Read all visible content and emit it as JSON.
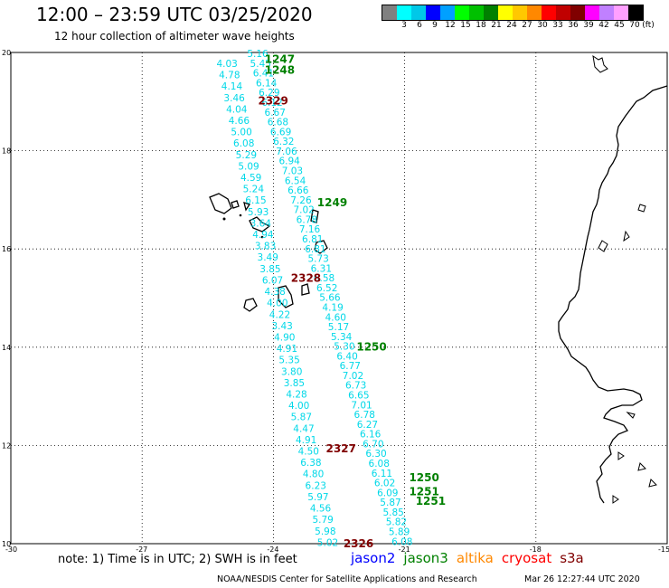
{
  "title": "12:00 – 23:59 UTC 03/25/2020",
  "subtitle": "12 hour collection of altimeter wave heights",
  "legend": {
    "colors": [
      "#808080",
      "#00ffff",
      "#00c8e8",
      "#0000ff",
      "#00a0ff",
      "#00ff00",
      "#00c000",
      "#008000",
      "#ffff00",
      "#ffc800",
      "#ff8800",
      "#ff0000",
      "#c00000",
      "#800000",
      "#ff00ff",
      "#c080ff",
      "#ffa0ff",
      "#000000"
    ],
    "labels": [
      "3",
      "6",
      "9",
      "12",
      "15",
      "18",
      "21",
      "24",
      "27",
      "30",
      "33",
      "36",
      "39",
      "42",
      "45",
      "70"
    ],
    "unit": "(ft)"
  },
  "axes": {
    "x_ticks": [
      "-30",
      "-27",
      "-24",
      "-21",
      "-18",
      "-15"
    ],
    "x_values": [
      -30,
      -27,
      -24,
      -21,
      -18,
      -15
    ],
    "y_ticks": [
      "20",
      "18",
      "16",
      "14",
      "12",
      "10"
    ],
    "y_values": [
      20,
      18,
      16,
      14,
      12,
      10
    ],
    "xlim": [
      -30,
      -15
    ],
    "ylim": [
      10,
      20
    ]
  },
  "colors": {
    "jason2": "#0000ff",
    "jason3": "#008000",
    "altika": "#ff8800",
    "cryosat": "#ff0000",
    "s3a": "#800000",
    "swh": "#00d8e8"
  },
  "note": "note: 1) Time is in UTC; 2) SWH is in feet",
  "satellites": [
    {
      "name": "jason2",
      "color": "#0000ff"
    },
    {
      "name": "jason3",
      "color": "#008000"
    },
    {
      "name": "altika",
      "color": "#ff8800"
    },
    {
      "name": "cryosat",
      "color": "#ff0000"
    },
    {
      "name": "s3a",
      "color": "#800000"
    }
  ],
  "credit": "NOAA/NESDIS Center for Satellite Applications and Research",
  "timestamp": "Mar 26 12:27:44 UTC 2020",
  "pass_labels": [
    {
      "text": "1247",
      "lon": -24.2,
      "lat": 19.88,
      "color": "#008000"
    },
    {
      "text": "1248",
      "lon": -24.2,
      "lat": 19.66,
      "color": "#008000"
    },
    {
      "text": "2329",
      "lon": -24.35,
      "lat": 19.03,
      "color": "#800000"
    },
    {
      "text": "1249",
      "lon": -23.0,
      "lat": 16.96,
      "color": "#008000"
    },
    {
      "text": "2328",
      "lon": -23.6,
      "lat": 15.42,
      "color": "#800000"
    },
    {
      "text": "1250",
      "lon": -22.1,
      "lat": 14.02,
      "color": "#008000"
    },
    {
      "text": "2327",
      "lon": -22.8,
      "lat": 11.95,
      "color": "#800000"
    },
    {
      "text": "1250",
      "lon": -20.9,
      "lat": 11.36,
      "color": "#008000"
    },
    {
      "text": "1251",
      "lon": -20.9,
      "lat": 11.08,
      "color": "#008000"
    },
    {
      "text": "1251",
      "lon": -20.75,
      "lat": 10.88,
      "color": "#008000"
    },
    {
      "text": "2326",
      "lon": -22.4,
      "lat": 10.02,
      "color": "#800000"
    }
  ],
  "track_a": [
    "5.16",
    "5.45",
    "6.41",
    "6.14",
    "6.29",
    "6.12",
    "6.67",
    "6.68",
    "6.69",
    "6.32",
    "7.06",
    "6.94",
    "7.03",
    "6.54",
    "6.66",
    "7.26",
    "7.02",
    "6.78",
    "7.16",
    "6.81",
    "6.81",
    "5.73",
    "6.31",
    "6.58",
    "6.52",
    "5.66",
    "4.19",
    "4.60",
    "5.17",
    "5.34",
    "5.30",
    "6.40",
    "6.77",
    "7.02",
    "6.73",
    "6.65",
    "7.01",
    "6.78",
    "6.27",
    "6.16",
    "6.70",
    "6.30",
    "6.08",
    "6.11",
    "6.02",
    "6.09",
    "5.87",
    "5.85",
    "5.82",
    "5.89",
    "6.08"
  ],
  "track_b": [
    "4.03",
    "4.78",
    "4.14",
    "3.46",
    "4.04",
    "4.66",
    "5.00",
    "6.08",
    "5.29",
    "5.09",
    "4.59",
    "5.24",
    "6.15",
    "5.93",
    "3.64",
    "4.94",
    "3.83",
    "3.49",
    "3.85",
    "6.07",
    "4.38",
    "4.00",
    "4.22",
    "3.43",
    "4.90",
    "4.91",
    "5.35",
    "3.80",
    "3.85",
    "4.28",
    "4.00",
    "5.87",
    "4.47",
    "4.91",
    "4.50",
    "6.38",
    "4.80",
    "6.23",
    "5.97",
    "4.56",
    "5.79",
    "5.98",
    "5.02"
  ]
}
